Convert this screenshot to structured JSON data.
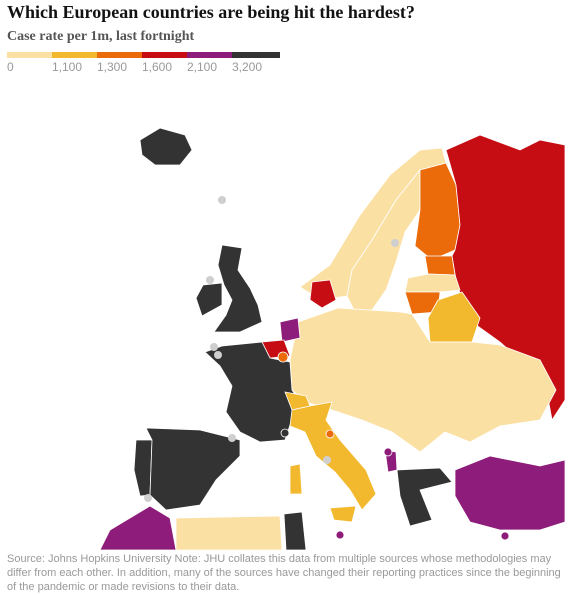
{
  "header": {
    "title": "Which European countries are being hit the hardest?",
    "subtitle": "Case rate per 1m, last fortnight"
  },
  "legend": {
    "items": [
      {
        "label": "0",
        "color": "#fbe0a3"
      },
      {
        "label": "1,100",
        "color": "#f3b92e"
      },
      {
        "label": "1,300",
        "color": "#eb6a0a"
      },
      {
        "label": "1,600",
        "color": "#c70d14"
      },
      {
        "label": "2,100",
        "color": "#8e1c7a"
      },
      {
        "label": "3,200",
        "color": "#333333"
      }
    ]
  },
  "source": "Source: Johns Hopkins University Note: JHU collates this data from multiple sources whose methodologies may differ from each other. In addition, many of the sources have changed their reporting practices since the beginning of the pandemic or made revisions to their data."
}
